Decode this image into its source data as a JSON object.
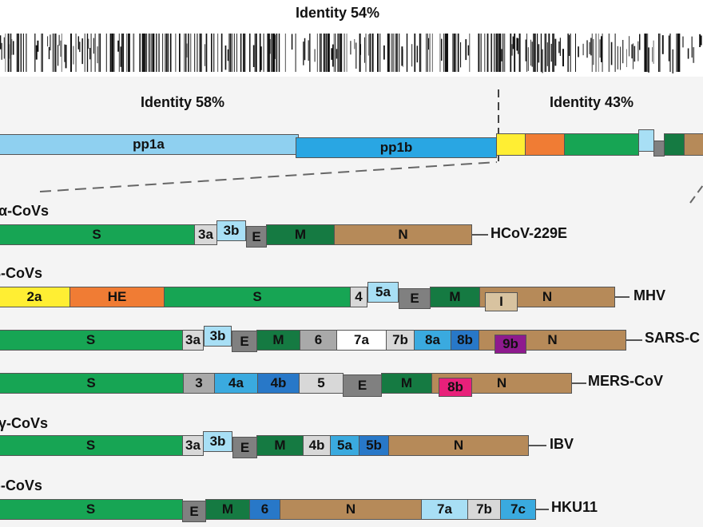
{
  "colors": {
    "pp1a": "#8fd0f0",
    "pp1b": "#29a6e3",
    "S": "#17a554",
    "M": "#157a42",
    "N": "#b68a59",
    "E": "#808080",
    "HE": "#f07c34",
    "yellow": "#ffee33",
    "lightblue": "#a8dff5",
    "midblue": "#3aaadf",
    "darkblue": "#2878c8",
    "lightgray": "#d8d8d8",
    "medgray": "#a9a9a9",
    "white": "#ffffff",
    "purple": "#8e1a8e",
    "pink": "#e8207a",
    "tan_light": "#d8c3a0"
  },
  "header": {
    "identity_top": "Identity 54%",
    "identity_left": "Identity 58%",
    "identity_right": "Identity 43%"
  },
  "genome": {
    "pp1a_label": "pp1a",
    "pp1b_label": "pp1b"
  },
  "groups": {
    "alpha": "α-CoVs",
    "beta": "β-CoVs",
    "gamma": "γ-CoVs",
    "delta": "δ-CoVs"
  },
  "viruses": {
    "hcov229e": {
      "name": "HCoV-229E",
      "genes": [
        "S",
        "3a",
        "3b",
        "E",
        "M",
        "N"
      ]
    },
    "mhv": {
      "name": "MHV",
      "genes": [
        "2a",
        "HE",
        "S",
        "4",
        "5a",
        "E",
        "M",
        "N",
        "I"
      ]
    },
    "sars": {
      "name": "SARS-C",
      "genes": [
        "S",
        "3a",
        "3b",
        "E",
        "M",
        "6",
        "7a",
        "7b",
        "8a",
        "8b",
        "9b",
        "N"
      ]
    },
    "mers": {
      "name": "MERS-CoV",
      "genes": [
        "S",
        "3",
        "4a",
        "4b",
        "5",
        "E",
        "M",
        "8b",
        "N"
      ]
    },
    "ibv": {
      "name": "IBV",
      "genes": [
        "S",
        "3a",
        "3b",
        "E",
        "M",
        "4b",
        "5a",
        "5b",
        "N"
      ]
    },
    "hku11": {
      "name": "HKU11",
      "genes": [
        "S",
        "E",
        "M",
        "6",
        "N",
        "7a",
        "7b",
        "7c"
      ]
    }
  }
}
